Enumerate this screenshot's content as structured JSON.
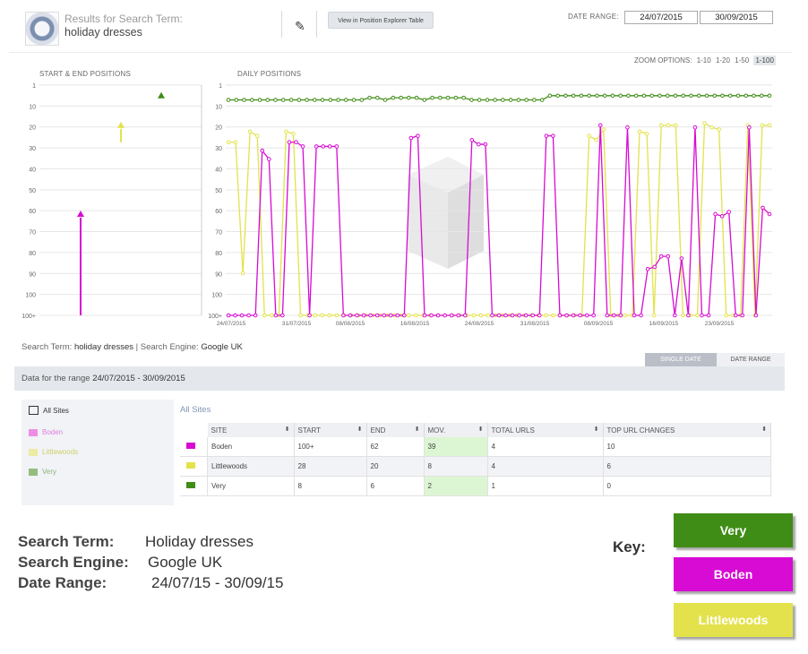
{
  "header": {
    "results_label": "Results for Search Term:",
    "search_term": "holiday dresses",
    "explorer_button": "View in Position Explorer Table",
    "date_range_label": "DATE RANGE:",
    "date_from": "24/07/2015",
    "date_to": "30/09/2015"
  },
  "zoom": {
    "label": "ZOOM OPTIONS:",
    "options": [
      "1-10",
      "1-20",
      "1-50",
      "1-100"
    ],
    "selected": "1-100"
  },
  "panels": {
    "start_end_title": "START & END POSITIONS",
    "daily_title": "DAILY POSITIONS"
  },
  "colors": {
    "very": "#3f8d16",
    "very_light": "#96bd7e",
    "boden": "#d70bd3",
    "boden_light": "#ec8ee6",
    "littlewoods": "#e3e24c",
    "littlewoods_light": "#ebeba4"
  },
  "chart_data": [
    {
      "type": "scatter",
      "title": "START & END POSITIONS",
      "y_ticks": [
        "1",
        "10",
        "20",
        "30",
        "40",
        "50",
        "60",
        "70",
        "80",
        "90",
        "100",
        "100+"
      ],
      "series": [
        {
          "name": "Boden",
          "start": 101,
          "end": 62
        },
        {
          "name": "Littlewoods",
          "start": 28,
          "end": 20
        },
        {
          "name": "Very",
          "start": 8,
          "end": 6
        }
      ]
    },
    {
      "type": "line",
      "title": "DAILY POSITIONS",
      "y_ticks": [
        "1",
        "10",
        "20",
        "30",
        "40",
        "50",
        "60",
        "70",
        "80",
        "90",
        "100",
        "100+"
      ],
      "x_ticks": [
        "24/07/2015",
        "31/07/2015",
        "08/08/2015",
        "16/08/2015",
        "24/08/2015",
        "31/08/2015",
        "08/09/2015",
        "16/09/2015",
        "23/09/2015"
      ],
      "series": [
        {
          "name": "Very",
          "values": [
            8,
            8,
            8,
            8,
            8,
            8,
            8,
            8,
            8,
            8,
            8,
            8,
            8,
            8,
            8,
            8,
            8,
            8,
            7,
            7,
            8,
            7,
            7,
            7,
            7,
            8,
            7,
            7,
            7,
            7,
            7,
            8,
            8,
            8,
            8,
            8,
            8,
            8,
            8,
            8,
            8,
            6,
            6,
            6,
            6,
            6,
            6,
            6,
            6,
            6,
            6,
            6,
            6,
            6,
            6,
            6,
            6,
            6,
            6,
            6,
            6,
            6,
            6,
            6,
            6,
            6,
            6,
            6,
            6,
            6
          ]
        },
        {
          "name": "Boden",
          "values": [
            101,
            101,
            101,
            101,
            101,
            32,
            36,
            101,
            101,
            28,
            28,
            30,
            101,
            30,
            30,
            30,
            30,
            101,
            101,
            101,
            101,
            101,
            101,
            101,
            101,
            101,
            101,
            26,
            25,
            101,
            101,
            101,
            101,
            101,
            101,
            101,
            27,
            29,
            29,
            101,
            101,
            101,
            101,
            101,
            101,
            101,
            101,
            25,
            25,
            101,
            101,
            101,
            101,
            101,
            101,
            20,
            101,
            101,
            101,
            21,
            101,
            101,
            88,
            87,
            82,
            82,
            101,
            83,
            101,
            21,
            101,
            101,
            62,
            63,
            61,
            101,
            101,
            21,
            101,
            59,
            62
          ]
        },
        {
          "name": "Littlewoods",
          "values": [
            28,
            28,
            90,
            23,
            25,
            101,
            101,
            101,
            23,
            24,
            101,
            101,
            101,
            101,
            101,
            101,
            101,
            101,
            101,
            101,
            101,
            101,
            101,
            101,
            101,
            101,
            101,
            101,
            101,
            101,
            101,
            101,
            101,
            101,
            101,
            101,
            101,
            101,
            101,
            101,
            101,
            101,
            101,
            101,
            101,
            101,
            101,
            101,
            101,
            101,
            25,
            27,
            22,
            101,
            101,
            101,
            101,
            23,
            24,
            101,
            20,
            20,
            20,
            101,
            101,
            101,
            19,
            21,
            22,
            101,
            101,
            101,
            20,
            101,
            20,
            20
          ]
        }
      ]
    }
  ],
  "summary": {
    "prefix": "Search Term: ",
    "term": "holiday dresses",
    "sep": " | Search Engine: ",
    "engine": "Google UK"
  },
  "tabs": {
    "single": "SINGLE DATE",
    "range": "DATE RANGE"
  },
  "range_bar": {
    "prefix": "Data for the range ",
    "range": "24/07/2015 - 30/09/2015"
  },
  "left_list": {
    "all": "All Sites",
    "items": [
      "Boden",
      "Littlewoods",
      "Very"
    ]
  },
  "table": {
    "title": "All Sites",
    "headers": [
      "SITE",
      "START",
      "END",
      "MOV.",
      "TOTAL URLS",
      "TOP URL CHANGES"
    ],
    "rows": [
      {
        "site": "Boden",
        "start": "100+",
        "end": "62",
        "mov": "39",
        "urls": "4",
        "changes": "10"
      },
      {
        "site": "Littlewoods",
        "start": "28",
        "end": "20",
        "mov": "8",
        "urls": "4",
        "changes": "6"
      },
      {
        "site": "Very",
        "start": "8",
        "end": "6",
        "mov": "2",
        "urls": "1",
        "changes": "0"
      }
    ]
  },
  "footer": {
    "term_label": "Search Term:",
    "term_value": "Holiday dresses",
    "engine_label": "Search Engine:",
    "engine_value": "Google UK",
    "range_label": "Date Range:",
    "range_value": "24/07/15 - 30/09/15"
  },
  "key": {
    "label": "Key:",
    "very": "Very",
    "boden": "Boden",
    "littlewoods": "Littlewoods"
  }
}
